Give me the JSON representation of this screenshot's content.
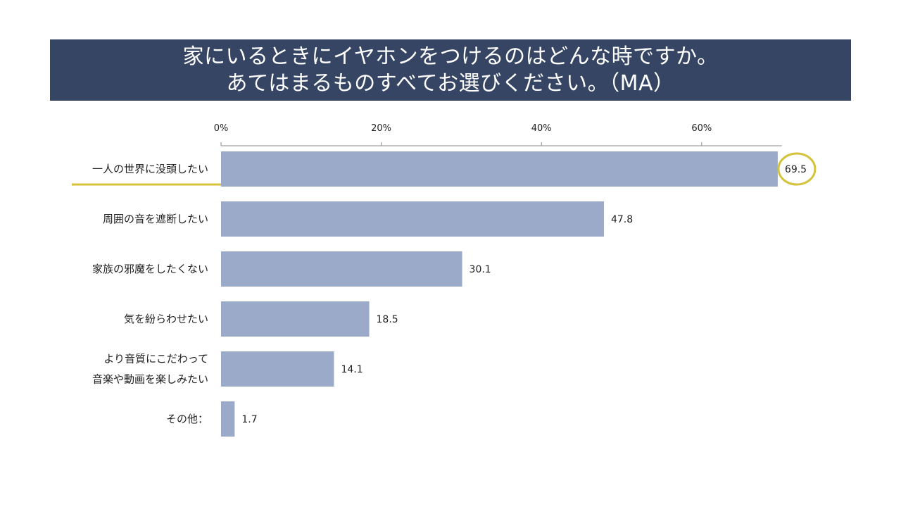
{
  "header": {
    "title_line1": "家にいるときにイヤホンをつけるのはどんな時ですか。",
    "title_line2": "あてはまるものすべてお選びください。（MA）"
  },
  "chart_data": {
    "type": "bar",
    "orientation": "horizontal",
    "categories": [
      [
        "一人の世界に没頭したい"
      ],
      [
        "周囲の音を遮断したい"
      ],
      [
        "家族の邪魔をしたくない"
      ],
      [
        "気を紛らわせたい"
      ],
      [
        "より音質にこだわって",
        "音楽や動画を楽しみたい"
      ],
      [
        "その他："
      ]
    ],
    "values": [
      69.5,
      47.8,
      30.1,
      18.5,
      14.1,
      1.7
    ],
    "xticks": [
      "0%",
      "20%",
      "40%",
      "60%"
    ],
    "xtick_values": [
      0,
      20,
      40,
      60
    ],
    "xlim": [
      0,
      70
    ],
    "highlight_index": 0,
    "colors": {
      "bar": "#9baac8",
      "highlight": "#d4c23a",
      "axis": "#888888"
    }
  }
}
